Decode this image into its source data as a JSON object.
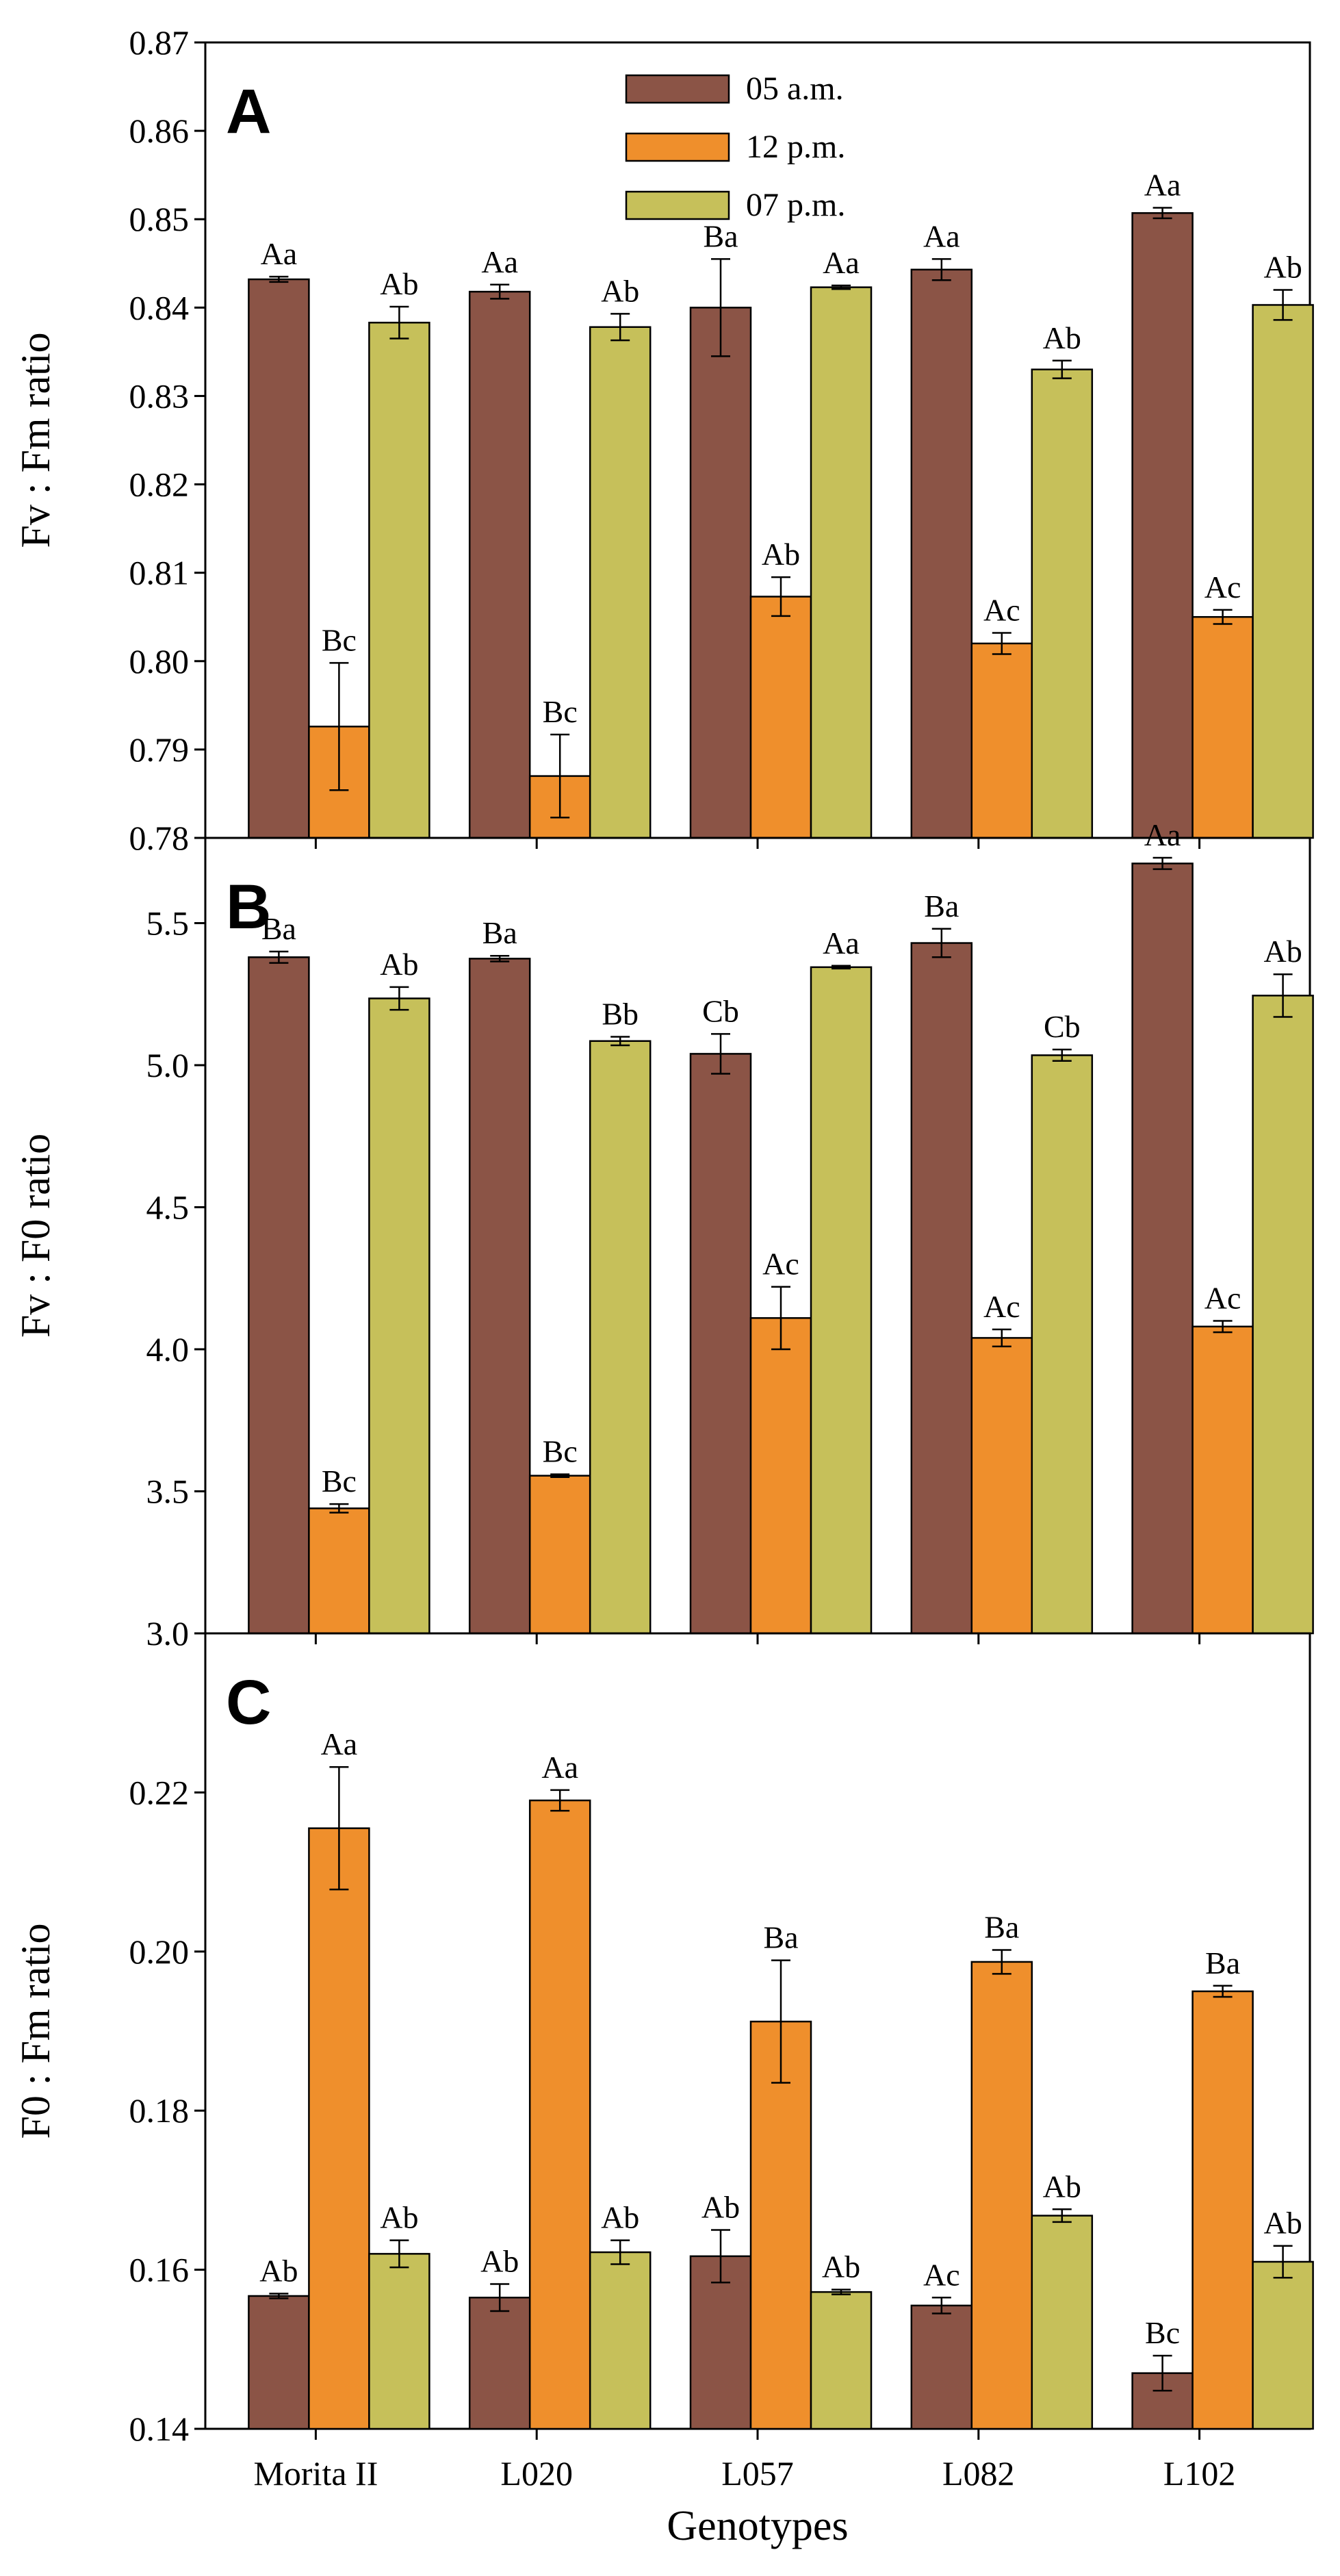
{
  "colors": {
    "05 a.m.": "#8b5446",
    "12 p.m.": "#ef8f2c",
    "07 p.m.": "#c6c05a"
  },
  "chart_data": [
    {
      "type": "bar",
      "panel": "A",
      "ylabel": "Fv : Fm  ratio",
      "ylim": [
        0.78,
        0.87
      ],
      "yticks": [
        "0.78",
        "0.79",
        "0.80",
        "0.81",
        "0.82",
        "0.83",
        "0.84",
        "0.85",
        "0.86",
        "0.87"
      ],
      "categories": [
        "Morita II",
        "L020",
        "L057",
        "L082",
        "L102"
      ],
      "legend": {
        "placement": "top-center",
        "entries": [
          "05 a.m.",
          "12 p.m.",
          "07 p.m."
        ]
      },
      "series": [
        {
          "name": "05 a.m.",
          "values": [
            0.8432,
            0.8418,
            0.84,
            0.8443,
            0.8507
          ],
          "errors": [
            0.0003,
            0.0008,
            0.0055,
            0.0012,
            0.0006
          ],
          "labels": [
            "Aa",
            "Aa",
            "Ba",
            "Aa",
            "Aa"
          ]
        },
        {
          "name": "12 p.m.",
          "values": [
            0.7926,
            0.787,
            0.8073,
            0.802,
            0.805
          ],
          "errors": [
            0.0072,
            0.0047,
            0.0022,
            0.0012,
            0.0008
          ],
          "labels": [
            "Bc",
            "Bc",
            "Ab",
            "Ac",
            "Ac"
          ]
        },
        {
          "name": "07 p.m.",
          "values": [
            0.8383,
            0.8378,
            0.8423,
            0.833,
            0.8403
          ],
          "errors": [
            0.0018,
            0.0015,
            0.0002,
            0.001,
            0.0017
          ],
          "labels": [
            "Ab",
            "Ab",
            "Aa",
            "Ab",
            "Ab"
          ]
        }
      ]
    },
    {
      "type": "bar",
      "panel": "B",
      "ylabel": "Fv : F0  ratio",
      "ylim": [
        3.0,
        5.8
      ],
      "yticks": [
        "3.0",
        "3.5",
        "4.0",
        "4.5",
        "5.0",
        "5.5"
      ],
      "categories": [
        "Morita II",
        "L020",
        "L057",
        "L082",
        "L102"
      ],
      "series": [
        {
          "name": "05 a.m.",
          "values": [
            5.38,
            5.375,
            5.04,
            5.43,
            5.71
          ],
          "errors": [
            0.02,
            0.01,
            0.07,
            0.05,
            0.02
          ],
          "labels": [
            "Ba",
            "Ba",
            "Cb",
            "Ba",
            "Aa"
          ]
        },
        {
          "name": "12 p.m.",
          "values": [
            3.44,
            3.555,
            4.11,
            4.04,
            4.08
          ],
          "errors": [
            0.015,
            0.005,
            0.11,
            0.03,
            0.02
          ],
          "labels": [
            "Bc",
            "Bc",
            "Ac",
            "Ac",
            "Ac"
          ]
        },
        {
          "name": "07 p.m.",
          "values": [
            5.235,
            5.085,
            5.345,
            5.035,
            5.245
          ],
          "errors": [
            0.04,
            0.015,
            0.005,
            0.02,
            0.075
          ],
          "labels": [
            "Ab",
            "Bb",
            "Aa",
            "Cb",
            "Ab"
          ]
        }
      ]
    },
    {
      "type": "bar",
      "panel": "C",
      "ylabel": "F0 : Fm ratio",
      "xlabel": "Genotypes",
      "ylim": [
        0.14,
        0.24
      ],
      "yticks": [
        "0.14",
        "0.16",
        "0.18",
        "0.20",
        "0.22"
      ],
      "categories": [
        "Morita II",
        "L020",
        "L057",
        "L082",
        "L102"
      ],
      "series": [
        {
          "name": "05 a.m.",
          "values": [
            0.1567,
            0.1565,
            0.1617,
            0.1555,
            0.147
          ],
          "errors": [
            0.0003,
            0.0017,
            0.0033,
            0.001,
            0.0022
          ],
          "labels": [
            "Ab",
            "Ab",
            "Ab",
            "Ac",
            "Bc"
          ]
        },
        {
          "name": "12 p.m.",
          "values": [
            0.2155,
            0.219,
            0.1912,
            0.1987,
            0.195
          ],
          "errors": [
            0.0077,
            0.0013,
            0.0077,
            0.0015,
            0.0007
          ],
          "labels": [
            "Aa",
            "Aa",
            "Ba",
            "Ba",
            "Ba"
          ]
        },
        {
          "name": "07 p.m.",
          "values": [
            0.162,
            0.1622,
            0.1572,
            0.1668,
            0.161
          ],
          "errors": [
            0.0017,
            0.0015,
            0.0003,
            0.0008,
            0.002
          ],
          "labels": [
            "Ab",
            "Ab",
            "Ab",
            "Ab",
            "Ab"
          ]
        }
      ]
    }
  ]
}
